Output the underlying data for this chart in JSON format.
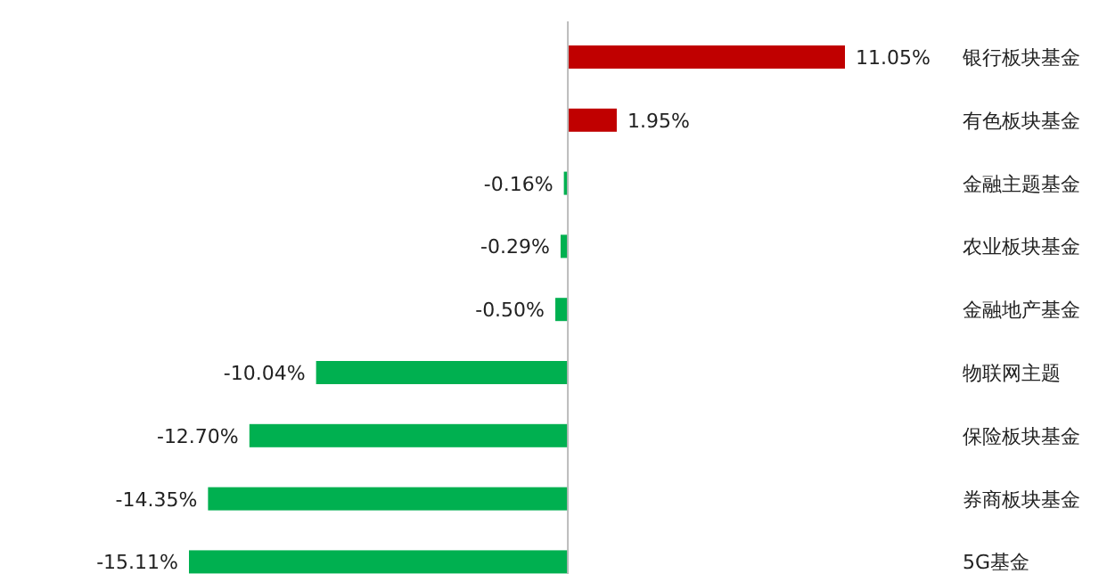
{
  "chart_data": {
    "type": "bar",
    "orientation": "horizontal",
    "categories": [
      "银行板块基金",
      "有色板块基金",
      "金融主题基金",
      "农业板块基金",
      "金融地产基金",
      "物联网主题",
      "保险板块基金",
      "券商板块基金",
      "5G基金"
    ],
    "values": [
      11.05,
      1.95,
      -0.16,
      -0.29,
      -0.5,
      -10.04,
      -12.7,
      -14.35,
      -15.11
    ],
    "value_labels": [
      "11.05%",
      "1.95%",
      "-0.16%",
      "-0.29%",
      "-0.50%",
      "-10.04%",
      "-12.70%",
      "-14.35%",
      "-15.11%"
    ],
    "colors": [
      "#c00000",
      "#c00000",
      "#00b050",
      "#00b050",
      "#00b050",
      "#00b050",
      "#00b050",
      "#00b050",
      "#00b050"
    ]
  }
}
